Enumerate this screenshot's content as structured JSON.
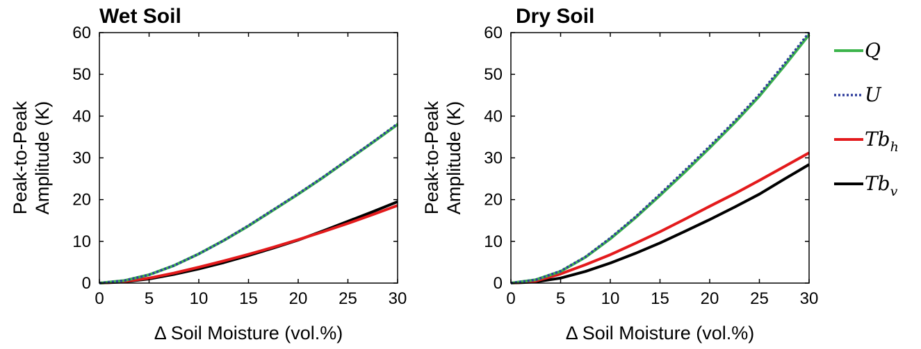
{
  "chart_data": [
    {
      "type": "line",
      "title": "Wet Soil",
      "xlabel": "Δ Soil Moisture (vol.%)",
      "ylabel": [
        "Peak-to-Peak",
        "Amplitude (K)"
      ],
      "xlim": [
        0,
        30
      ],
      "ylim": [
        0,
        60
      ],
      "xticks": [
        "0",
        "5",
        "10",
        "15",
        "20",
        "25",
        "30"
      ],
      "yticks": [
        "0",
        "10",
        "20",
        "30",
        "40",
        "50",
        "60"
      ],
      "grid": false,
      "x": [
        0,
        2.5,
        5,
        7.5,
        10,
        12.5,
        15,
        17.5,
        20,
        22.5,
        25,
        27.5,
        30
      ],
      "series": [
        {
          "name": "Q",
          "color": "#3cb44b",
          "dash": "solid",
          "values": [
            0,
            0.6,
            2.0,
            4.2,
            7.0,
            10.2,
            13.7,
            17.5,
            21.3,
            25.3,
            29.5,
            33.7,
            38.0
          ]
        },
        {
          "name": "U",
          "color": "#2f3d9c",
          "dash": "dotted",
          "values": [
            0,
            0.6,
            2.0,
            4.2,
            7.0,
            10.2,
            13.8,
            17.6,
            21.4,
            25.4,
            29.6,
            33.8,
            38.2
          ]
        },
        {
          "name": "Tb_h",
          "color": "#e31a1c",
          "dash": "solid",
          "values": [
            0,
            0.4,
            1.2,
            2.4,
            3.8,
            5.3,
            6.9,
            8.6,
            10.4,
            12.3,
            14.3,
            16.4,
            18.6
          ]
        },
        {
          "name": "Tb_v",
          "color": "#000000",
          "dash": "solid",
          "values": [
            0,
            0.3,
            1.0,
            2.1,
            3.4,
            4.9,
            6.6,
            8.4,
            10.3,
            12.5,
            14.8,
            17.1,
            19.5
          ]
        }
      ]
    },
    {
      "type": "line",
      "title": "Dry Soil",
      "xlabel": "Δ Soil Moisture (vol.%)",
      "ylabel": [
        "Peak-to-Peak",
        "Amplitude (K)"
      ],
      "xlim": [
        0,
        30
      ],
      "ylim": [
        0,
        60
      ],
      "xticks": [
        "0",
        "5",
        "10",
        "15",
        "20",
        "25",
        "30"
      ],
      "yticks": [
        "0",
        "10",
        "20",
        "30",
        "40",
        "50",
        "60"
      ],
      "grid": false,
      "x": [
        0,
        2.5,
        5,
        7.5,
        10,
        12.5,
        15,
        17.5,
        20,
        22.5,
        25,
        27.5,
        30
      ],
      "series": [
        {
          "name": "Q",
          "color": "#3cb44b",
          "dash": "solid",
          "values": [
            0,
            0.8,
            2.8,
            6.2,
            10.6,
            15.6,
            21.0,
            26.6,
            32.4,
            38.4,
            44.8,
            52.0,
            59.5
          ]
        },
        {
          "name": "U",
          "color": "#2f3d9c",
          "dash": "dotted",
          "values": [
            0,
            0.8,
            2.9,
            6.3,
            10.8,
            15.8,
            21.3,
            27.0,
            32.8,
            38.8,
            45.2,
            52.5,
            60.0
          ]
        },
        {
          "name": "Tb_h",
          "color": "#e31a1c",
          "dash": "solid",
          "values": [
            0,
            0.5,
            2.2,
            4.4,
            6.8,
            9.5,
            12.3,
            15.3,
            18.4,
            21.4,
            24.6,
            27.9,
            31.2
          ]
        },
        {
          "name": "Tb_v",
          "color": "#000000",
          "dash": "solid",
          "values": [
            0,
            0.3,
            1.2,
            2.8,
            4.8,
            7.1,
            9.6,
            12.4,
            15.2,
            18.2,
            21.3,
            24.9,
            28.4
          ]
        }
      ]
    }
  ],
  "legend": {
    "placement": "right",
    "entries": [
      {
        "base": "Q",
        "sub": "",
        "color": "#3cb44b",
        "dash": "solid"
      },
      {
        "base": "U",
        "sub": "",
        "color": "#2f3d9c",
        "dash": "dotted"
      },
      {
        "base": "Tb",
        "sub": "h",
        "color": "#e31a1c",
        "dash": "solid"
      },
      {
        "base": "Tb",
        "sub": "v",
        "color": "#000000",
        "dash": "solid"
      }
    ]
  }
}
